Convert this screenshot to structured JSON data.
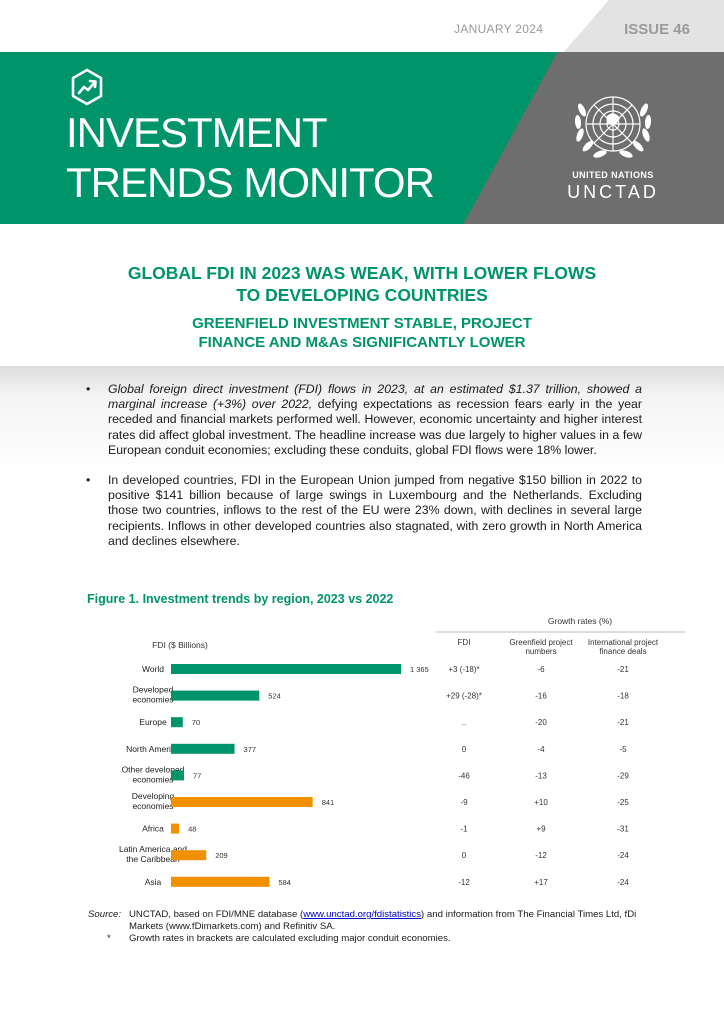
{
  "header": {
    "date": "JANUARY 2024",
    "issue": "ISSUE 46",
    "title_line1": "INVESTMENT",
    "title_line2": "TRENDS MONITOR",
    "un_name": "UNITED NATIONS",
    "un_agency": "UNCTAD",
    "icon": "trend-up-icon",
    "brand_green": "#00946b",
    "banner_grey": "#6e6e6e",
    "accent_orange": "#f29100"
  },
  "headline": {
    "line1": "GLOBAL FDI IN 2023 WAS WEAK, WITH LOWER FLOWS",
    "line2": "TO DEVELOPING COUNTRIES",
    "sub1": "GREENFIELD INVESTMENT STABLE, PROJECT",
    "sub2": "FINANCE AND M&As SIGNIFICANTLY LOWER"
  },
  "bullets": {
    "b1_italic": "Global foreign direct investment (FDI) flows in 2023, at an estimated $1.37 trillion, showed a marginal increase (+3%) over 2022,",
    "b1_rest": " defying expectations as recession fears early in the year receded and financial markets performed well. However, economic uncertainty and higher interest rates did affect global investment. The headline increase was due largely to higher values in a few European conduit economies; excluding these conduits, global FDI flows were 18% lower.",
    "b2": "In developed countries, FDI in the European Union jumped from negative $150 billion in 2022 to positive $141 billion because of large swings in Luxembourg and the Netherlands. Excluding those two countries, inflows to the rest of the EU were 23% down, with declines in several large recipients. Inflows in other developed countries also stagnated, with zero growth in North America and declines elsewhere."
  },
  "figure": {
    "title": "Figure 1. Investment trends by region, 2023 vs 2022"
  },
  "chart_data": {
    "type": "bar",
    "orientation": "horizontal",
    "title": "FDI ($ Billions)",
    "xlim": [
      0,
      1400
    ],
    "categories": [
      [
        "World"
      ],
      [
        "Developed",
        "economies"
      ],
      [
        "Europe"
      ],
      [
        "North America"
      ],
      [
        "Other developed",
        "economies"
      ],
      [
        "Developing",
        "economies"
      ],
      [
        "Africa"
      ],
      [
        "Latin America and",
        "the Caribbean"
      ],
      [
        "Asia"
      ]
    ],
    "values": [
      1365,
      524,
      70,
      377,
      77,
      841,
      48,
      209,
      584
    ],
    "value_labels": [
      "1 365",
      "524",
      "70",
      "377",
      "77",
      "841",
      "48",
      "209",
      "584"
    ],
    "groups": [
      "developed",
      "developed",
      "developed",
      "developed",
      "developed",
      "developing",
      "developing",
      "developing",
      "developing"
    ],
    "colors": {
      "developed": "#00946b",
      "developing": "#f29100"
    },
    "table": {
      "group_header": "Growth rates (%)",
      "columns": [
        [
          "FDI"
        ],
        [
          "Greenfield project",
          "numbers"
        ],
        [
          "International project",
          "finance deals"
        ]
      ],
      "rows": [
        [
          "+3 (-18)*",
          "-6",
          "-21"
        ],
        [
          "+29 (-28)*",
          "-16",
          "-18"
        ],
        [
          "..",
          "-20",
          "-21"
        ],
        [
          "0",
          "-4",
          "-5"
        ],
        [
          "-46",
          "-13",
          "-29"
        ],
        [
          "-9",
          "+10",
          "-25"
        ],
        [
          "-1",
          "+9",
          "-31"
        ],
        [
          "0",
          "-12",
          "-24"
        ],
        [
          "-12",
          "+17",
          "-24"
        ]
      ]
    }
  },
  "source": {
    "label": "Source:",
    "part1": "UNCTAD, based on FDI/MNE database (",
    "link": "www.unctad.org/fdistatistics",
    "part2": ") and information from The Financial Times Ltd, fDi Markets (www.fDimarkets.com) and Refinitiv SA.",
    "note_marker": "*",
    "note": "Growth rates in brackets are calculated excluding major conduit economies."
  }
}
